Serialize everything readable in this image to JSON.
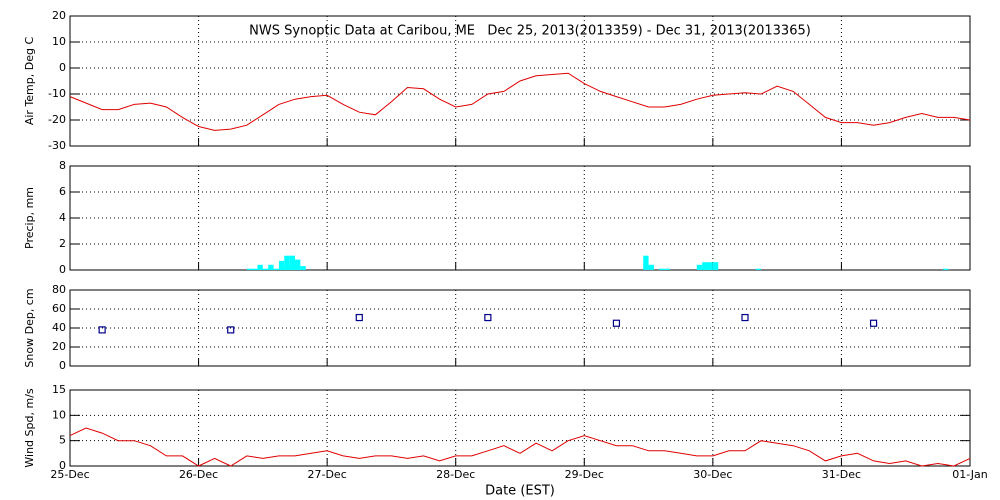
{
  "chart_data": [
    {
      "type": "line",
      "title": "NWS Synoptic Data at Caribou, ME   Dec 25, 2013(2013359) - Dec 31, 2013(2013365)",
      "ylabel": "Air Temp, Deg C",
      "color": "#e00000",
      "grid": true,
      "xlim": [
        0,
        168
      ],
      "xticks": [
        0,
        24,
        48,
        72,
        96,
        120,
        144,
        168
      ],
      "ylim": [
        -30,
        20
      ],
      "yticks": [
        -30,
        -20,
        -10,
        0,
        10,
        20
      ],
      "x": [
        0,
        3,
        6,
        9,
        12,
        15,
        18,
        21,
        24,
        27,
        30,
        33,
        36,
        39,
        42,
        45,
        48,
        51,
        54,
        57,
        60,
        63,
        66,
        69,
        72,
        75,
        78,
        81,
        84,
        87,
        90,
        93,
        96,
        99,
        102,
        105,
        108,
        111,
        114,
        117,
        120,
        123,
        126,
        129,
        132,
        135,
        138,
        141,
        144,
        147,
        150,
        153,
        156,
        159,
        162,
        165,
        168
      ],
      "values": [
        -11,
        -13.5,
        -16,
        -16,
        -14,
        -13.5,
        -15,
        -19,
        -22.5,
        -24,
        -23.5,
        -22,
        -18,
        -14,
        -12,
        -11,
        -10.5,
        -14,
        -17,
        -18,
        -13,
        -7.5,
        -8,
        -12,
        -15,
        -14,
        -10,
        -9,
        -5,
        -3,
        -2.5,
        -2,
        -6,
        -9,
        -11,
        -13,
        -15,
        -15,
        -14,
        -12,
        -10.5,
        -10,
        -9.5,
        -10,
        -7,
        -9,
        -14,
        -19,
        -21,
        -21,
        -22,
        -21,
        -19,
        -17.5,
        -19,
        -19,
        -20
      ]
    },
    {
      "type": "bar",
      "ylabel": "Precip, mm",
      "color": "#00ffff",
      "grid": true,
      "xlim": [
        0,
        168
      ],
      "xticks": [
        0,
        24,
        48,
        72,
        96,
        120,
        144,
        168
      ],
      "ylim": [
        0,
        8
      ],
      "yticks": [
        0,
        2,
        4,
        6,
        8
      ],
      "x": [
        33,
        34,
        35,
        36,
        37,
        38,
        39,
        40,
        41,
        42,
        43,
        107,
        108,
        110,
        111,
        117,
        118,
        119,
        120,
        128,
        163
      ],
      "values": [
        0.1,
        0.1,
        0.4,
        0.1,
        0.4,
        0.1,
        0.7,
        1.1,
        1.1,
        0.8,
        0.3,
        1.1,
        0.4,
        0.1,
        0.1,
        0.4,
        0.6,
        0.6,
        0.6,
        0.1,
        0.1
      ]
    },
    {
      "type": "scatter",
      "ylabel": "Snow Dep, cm",
      "color": "#00008b",
      "grid": true,
      "xlim": [
        0,
        168
      ],
      "xticks": [
        0,
        24,
        48,
        72,
        96,
        120,
        144,
        168
      ],
      "ylim": [
        0,
        80
      ],
      "yticks": [
        0,
        20,
        40,
        60,
        80
      ],
      "x": [
        6,
        30,
        54,
        78,
        102,
        126,
        150
      ],
      "values": [
        38,
        38,
        51,
        51,
        45,
        51,
        45
      ]
    },
    {
      "type": "line",
      "ylabel": "Wind Spd, m/s",
      "xlabel": "Date (EST)",
      "color": "#e00000",
      "grid": true,
      "xlim": [
        0,
        168
      ],
      "xticks": [
        {
          "value": 0,
          "label": "25-Dec"
        },
        {
          "value": 24,
          "label": "26-Dec"
        },
        {
          "value": 48,
          "label": "27-Dec"
        },
        {
          "value": 72,
          "label": "28-Dec"
        },
        {
          "value": 96,
          "label": "29-Dec"
        },
        {
          "value": 120,
          "label": "30-Dec"
        },
        {
          "value": 144,
          "label": "31-Dec"
        },
        {
          "value": 168,
          "label": "01-Jan"
        }
      ],
      "ylim": [
        0,
        15
      ],
      "yticks": [
        0,
        5,
        10,
        15
      ],
      "x": [
        0,
        3,
        6,
        9,
        12,
        15,
        18,
        21,
        24,
        27,
        30,
        33,
        36,
        39,
        42,
        45,
        48,
        51,
        54,
        57,
        60,
        63,
        66,
        69,
        72,
        75,
        78,
        81,
        84,
        87,
        90,
        93,
        96,
        99,
        102,
        105,
        108,
        111,
        114,
        117,
        120,
        123,
        126,
        129,
        132,
        135,
        138,
        141,
        144,
        147,
        150,
        153,
        156,
        159,
        162,
        165,
        168
      ],
      "values": [
        6,
        7.5,
        6.5,
        5,
        5,
        4,
        2,
        2,
        0,
        1.5,
        0,
        2,
        1.5,
        2,
        2,
        2.5,
        3,
        2,
        1.5,
        2,
        2,
        1.5,
        2,
        1,
        2,
        2,
        3,
        4,
        2.5,
        4.5,
        3,
        5,
        6,
        5,
        4,
        4,
        3,
        3,
        2.5,
        2,
        2,
        3,
        3,
        5,
        4.5,
        4,
        3,
        1,
        2,
        2.5,
        1,
        0.5,
        1,
        0,
        0.5,
        0,
        1.5
      ]
    }
  ]
}
